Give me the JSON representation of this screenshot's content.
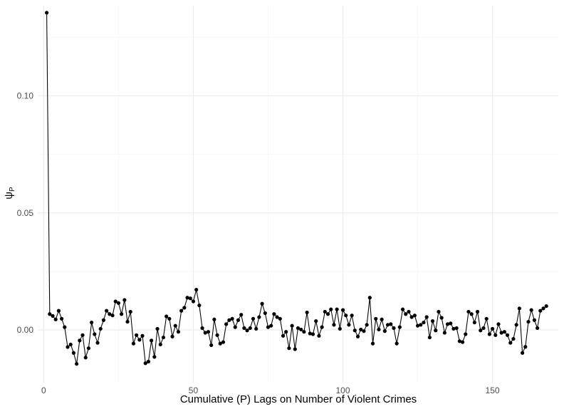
{
  "chart_data": {
    "type": "line",
    "xlabel": "Cumulative (P) Lags on Number of Violent Crimes",
    "ylabel_main": "ψ",
    "ylabel_sub": "P",
    "xlim": [
      -2,
      172
    ],
    "ylim": [
      -0.0225,
      0.1385
    ],
    "x_ticks": [
      0,
      50,
      100,
      150
    ],
    "x_tick_labels": [
      "0",
      "50",
      "100",
      "150"
    ],
    "y_ticks": [
      0.0,
      0.05,
      0.1
    ],
    "y_tick_labels": [
      "0.00",
      "0.05",
      "0.10"
    ],
    "grid": true,
    "colors": {
      "line": "#000000",
      "point": "#000000",
      "grid": "#ebebeb",
      "background": "#ffffff"
    },
    "x": [
      1,
      2,
      3,
      4,
      5,
      6,
      7,
      8,
      9,
      10,
      11,
      12,
      13,
      14,
      15,
      16,
      17,
      18,
      19,
      20,
      21,
      22,
      23,
      24,
      25,
      26,
      27,
      28,
      29,
      30,
      31,
      32,
      33,
      34,
      35,
      36,
      37,
      38,
      39,
      40,
      41,
      42,
      43,
      44,
      45,
      46,
      47,
      48,
      49,
      50,
      51,
      52,
      53,
      54,
      55,
      56,
      57,
      58,
      59,
      60,
      61,
      62,
      63,
      64,
      65,
      66,
      67,
      68,
      69,
      70,
      71,
      72,
      73,
      74,
      75,
      76,
      77,
      78,
      79,
      80,
      81,
      82,
      83,
      84,
      85,
      86,
      87,
      88,
      89,
      90,
      91,
      92,
      93,
      94,
      95,
      96,
      97,
      98,
      99,
      100,
      101,
      102,
      103,
      104,
      105,
      106,
      107,
      108,
      109,
      110,
      111,
      112,
      113,
      114,
      115,
      116,
      117,
      118,
      119,
      120,
      121,
      122,
      123,
      124,
      125,
      126,
      127,
      128,
      129,
      130,
      131,
      132,
      133,
      134,
      135,
      136,
      137,
      138,
      139,
      140,
      141,
      142,
      143,
      144,
      145,
      146,
      147,
      148,
      149,
      150,
      151,
      152,
      153,
      154,
      155,
      156,
      157,
      158,
      159,
      160,
      161,
      162,
      163,
      164,
      165,
      166,
      167,
      168
    ],
    "y": [
      0.1355,
      0.0068,
      0.006,
      0.0045,
      0.0082,
      0.0048,
      0.0012,
      -0.0073,
      -0.0062,
      -0.0098,
      -0.0145,
      -0.0045,
      -0.0022,
      -0.0118,
      -0.0078,
      0.0032,
      -0.0018,
      -0.0055,
      0.0005,
      0.0042,
      0.0082,
      0.0068,
      0.0062,
      0.0122,
      0.0115,
      0.0068,
      0.0128,
      0.0035,
      0.0078,
      -0.0058,
      -0.0022,
      -0.0042,
      -0.0025,
      -0.0142,
      -0.0135,
      -0.0045,
      -0.0115,
      0.0005,
      -0.0062,
      -0.0032,
      0.0058,
      0.0048,
      -0.0028,
      0.0018,
      -0.0008,
      0.0082,
      0.0095,
      0.0138,
      0.0135,
      0.0122,
      0.0172,
      0.0105,
      0.0008,
      -0.0012,
      -0.0008,
      -0.0065,
      0.0045,
      -0.0022,
      -0.0058,
      -0.0052,
      0.0025,
      0.0042,
      0.0048,
      0.0012,
      0.0042,
      0.0065,
      0.0008,
      -0.0002,
      0.0008,
      0.0048,
      0.0005,
      0.0055,
      0.0112,
      0.0072,
      0.0012,
      0.0018,
      0.0068,
      0.0055,
      0.0048,
      -0.0025,
      -0.0008,
      -0.0078,
      0.0018,
      -0.0082,
      0.0008,
      0.0002,
      -0.0008,
      0.0075,
      -0.0015,
      -0.0018,
      0.0038,
      -0.0025,
      0.0012,
      0.0078,
      0.0068,
      0.0088,
      0.0022,
      0.0088,
      0.0005,
      0.0085,
      0.0062,
      0.0022,
      0.0062,
      -0.0002,
      -0.0028,
      0.0002,
      -0.0005,
      0.0022,
      0.0138,
      -0.0058,
      0.0048,
      0.0002,
      0.0045,
      -0.0005,
      0.0022,
      0.0025,
      0.0008,
      -0.0058,
      0.0012,
      0.0088,
      0.0068,
      0.0078,
      0.0055,
      0.0062,
      0.0018,
      0.0022,
      0.0032,
      0.0055,
      -0.0032,
      0.0038,
      -0.0002,
      0.0078,
      0.0052,
      -0.0012,
      0.0025,
      0.0028,
      0.0005,
      0.0008,
      -0.0048,
      -0.0052,
      -0.0018,
      0.0078,
      0.0068,
      0.0032,
      0.0078,
      -0.0002,
      0.0008,
      0.0048,
      -0.0018,
      0.0005,
      -0.0022,
      0.0025,
      -0.0012,
      -0.0008,
      -0.0022,
      -0.0055,
      -0.0038,
      0.0022,
      0.0092,
      -0.0098,
      -0.0072,
      0.0035,
      0.0085,
      0.0042,
      0.0008,
      0.0082,
      0.0092,
      0.0102
    ]
  }
}
